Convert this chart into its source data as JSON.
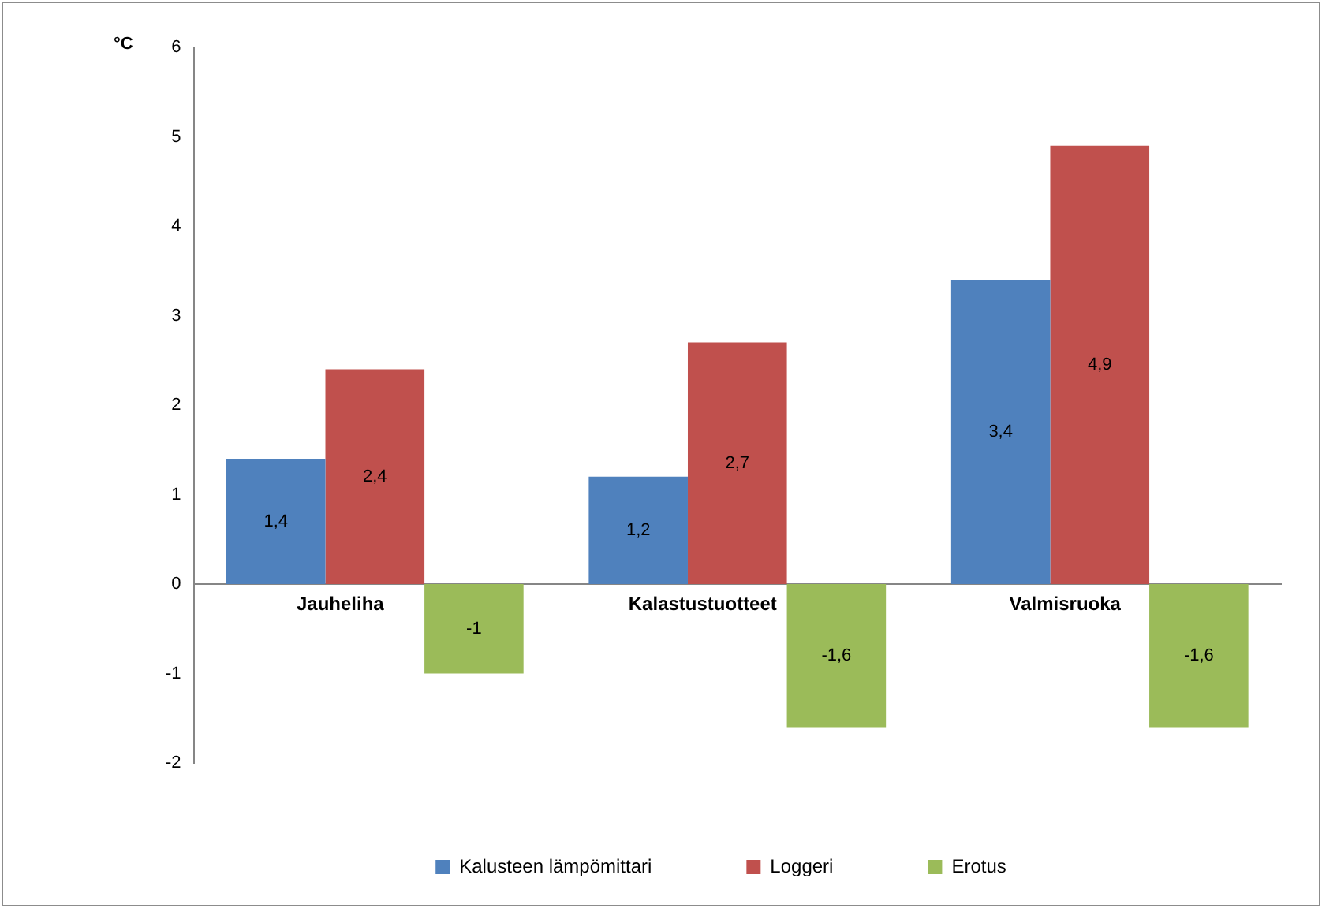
{
  "chart_data": {
    "type": "bar",
    "ylabel": "°C",
    "categories": [
      "Jauheliha",
      "Kalastustuotteet",
      "Valmisruoka"
    ],
    "series": [
      {
        "name": "Kalusteen lämpömittari",
        "color": "#4f81bd",
        "values": [
          1.4,
          1.2,
          3.4
        ],
        "value_labels": [
          "1,4",
          "1,2",
          "3,4"
        ]
      },
      {
        "name": "Loggeri",
        "color": "#c0504d",
        "values": [
          2.4,
          2.7,
          4.9
        ],
        "value_labels": [
          "2,4",
          "2,7",
          "4,9"
        ]
      },
      {
        "name": "Erotus",
        "color": "#9bbb59",
        "values": [
          -1,
          -1.6,
          -1.6
        ],
        "value_labels": [
          "-1",
          "-1,6",
          "-1,6"
        ]
      }
    ],
    "ylim": [
      -2,
      6
    ],
    "yticks": [
      -2,
      -1,
      0,
      1,
      2,
      3,
      4,
      5,
      6
    ],
    "grid": false,
    "legend": "bottom"
  }
}
